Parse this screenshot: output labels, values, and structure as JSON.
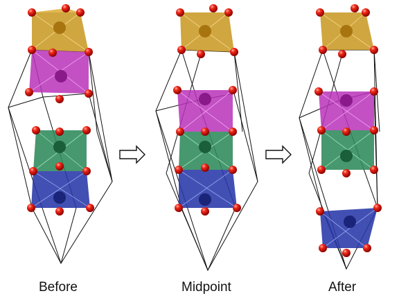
{
  "panels": [
    {
      "label": "Before"
    },
    {
      "label": "Midpoint"
    },
    {
      "label": "After"
    }
  ],
  "colors": {
    "gold": "#c8961e",
    "magenta": "#b832b8",
    "green": "#2d8a5a",
    "blue": "#2838a8",
    "oxygen": "#e01a1a",
    "cell_line": "#111111"
  }
}
